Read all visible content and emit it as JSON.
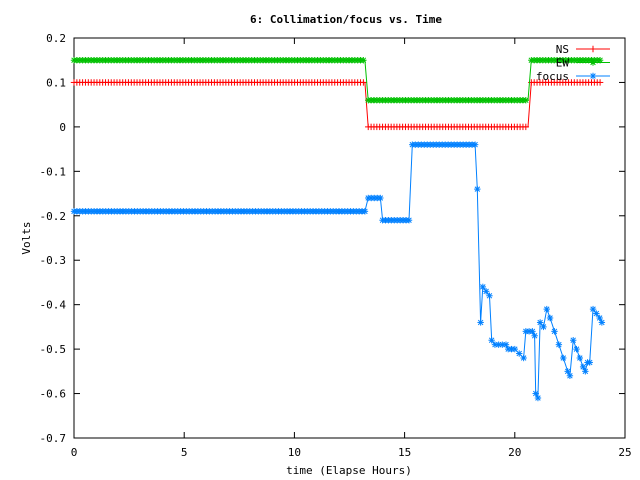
{
  "chart_data": {
    "type": "line",
    "title": "6: Collimation/focus vs. Time",
    "xlabel": "time (Elapse Hours)",
    "ylabel": "Volts",
    "xlim": [
      0,
      25
    ],
    "ylim": [
      -0.7,
      0.2
    ],
    "x_ticks": [
      0,
      5,
      10,
      15,
      20,
      25
    ],
    "y_ticks": [
      -0.7,
      -0.6,
      -0.5,
      -0.4,
      -0.3,
      -0.2,
      -0.1,
      0,
      0.1,
      0.2
    ],
    "x_tick_labels": [
      "0",
      "5",
      "10",
      "15",
      "20",
      "25"
    ],
    "y_tick_labels": [
      "-0.7",
      "-0.6",
      "-0.5",
      "-0.4",
      "-0.3",
      "-0.2",
      "-0.1",
      "0",
      "0.1",
      "0.2"
    ],
    "grid": false,
    "legend_position": "top-right",
    "series": [
      {
        "name": "NS",
        "color": "#ff0000",
        "marker": "plus",
        "step": 0.13,
        "segments": [
          {
            "x_start": 0,
            "x_end": 13.2,
            "y": 0.1
          },
          {
            "x_start": 13.35,
            "x_end": 20.6,
            "y": 0.0
          },
          {
            "x_start": 20.75,
            "x_end": 23.9,
            "y": 0.1
          }
        ]
      },
      {
        "name": "EW",
        "color": "#00c000",
        "marker": "star",
        "step": 0.13,
        "segments": [
          {
            "x_start": 0,
            "x_end": 13.2,
            "y": 0.15
          },
          {
            "x_start": 13.35,
            "x_end": 20.6,
            "y": 0.06
          },
          {
            "x_start": 20.75,
            "x_end": 23.9,
            "y": 0.15
          }
        ]
      },
      {
        "name": "focus",
        "color": "#0080ff",
        "marker": "star",
        "points": [
          [
            0,
            -0.19
          ],
          [
            13.2,
            -0.19
          ],
          [
            13.35,
            -0.16
          ],
          [
            13.9,
            -0.16
          ],
          [
            14.0,
            -0.21
          ],
          [
            15.2,
            -0.21
          ],
          [
            15.35,
            -0.04
          ],
          [
            18.2,
            -0.04
          ],
          [
            18.3,
            -0.14
          ],
          [
            18.45,
            -0.44
          ],
          [
            18.55,
            -0.36
          ],
          [
            18.7,
            -0.37
          ],
          [
            18.85,
            -0.38
          ],
          [
            18.95,
            -0.48
          ],
          [
            19.1,
            -0.49
          ],
          [
            19.6,
            -0.49
          ],
          [
            19.7,
            -0.5
          ],
          [
            20.0,
            -0.5
          ],
          [
            20.2,
            -0.51
          ],
          [
            20.4,
            -0.52
          ],
          [
            20.5,
            -0.46
          ],
          [
            20.8,
            -0.46
          ],
          [
            20.9,
            -0.47
          ],
          [
            20.95,
            -0.6
          ],
          [
            21.05,
            -0.61
          ],
          [
            21.15,
            -0.44
          ],
          [
            21.3,
            -0.45
          ],
          [
            21.45,
            -0.41
          ],
          [
            21.6,
            -0.43
          ],
          [
            21.8,
            -0.46
          ],
          [
            22.0,
            -0.49
          ],
          [
            22.2,
            -0.52
          ],
          [
            22.4,
            -0.55
          ],
          [
            22.5,
            -0.56
          ],
          [
            22.65,
            -0.48
          ],
          [
            22.8,
            -0.5
          ],
          [
            22.95,
            -0.52
          ],
          [
            23.1,
            -0.54
          ],
          [
            23.2,
            -0.55
          ],
          [
            23.3,
            -0.53
          ],
          [
            23.4,
            -0.53
          ],
          [
            23.55,
            -0.41
          ],
          [
            23.7,
            -0.42
          ],
          [
            23.85,
            -0.43
          ],
          [
            23.95,
            -0.44
          ]
        ]
      }
    ]
  }
}
